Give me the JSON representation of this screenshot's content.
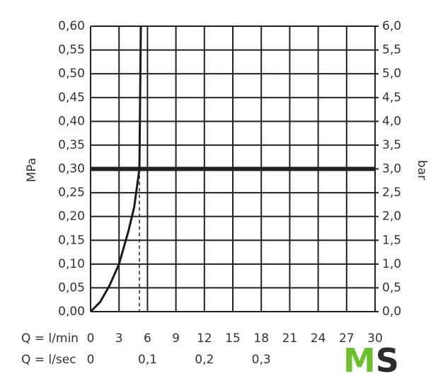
{
  "chart_data": {
    "type": "line",
    "y_label": "MPa",
    "y2_label": "bar",
    "x_label": "Q = l/min",
    "x2_label": "Q = l/sec",
    "x": [
      0,
      1,
      2,
      3,
      4,
      4.6,
      5.15,
      5.3
    ],
    "series": [
      {
        "color": "#1a1a1a",
        "values": [
          0,
          0.02,
          0.055,
          0.1,
          0.17,
          0.22,
          0.3,
          0.6
        ]
      }
    ],
    "xlim": [
      0,
      30
    ],
    "xticks": [
      0,
      3,
      6,
      9,
      12,
      15,
      18,
      21,
      24,
      27,
      30
    ],
    "x2lim": [
      0,
      0.5
    ],
    "x2ticks": [
      0,
      {
        "value": 0.1,
        "label": "0,1"
      },
      {
        "value": 0.2,
        "label": "0,2"
      },
      {
        "value": 0.3,
        "label": "0,3"
      }
    ],
    "ylim": [
      0,
      0.6
    ],
    "yticks": [
      {
        "value": 0,
        "label": "0,00"
      },
      {
        "value": 0.05,
        "label": "0,05"
      },
      {
        "value": 0.1,
        "label": "0,10"
      },
      {
        "value": 0.15,
        "label": "0,15"
      },
      {
        "value": 0.2,
        "label": "0,20"
      },
      {
        "value": 0.25,
        "label": "0,25"
      },
      {
        "value": 0.3,
        "label": "0,30"
      },
      {
        "value": 0.35,
        "label": "0,35"
      },
      {
        "value": 0.4,
        "label": "0,40"
      },
      {
        "value": 0.45,
        "label": "0,45"
      },
      {
        "value": 0.5,
        "label": "0,50"
      },
      {
        "value": 0.55,
        "label": "0,55"
      },
      {
        "value": 0.6,
        "label": "0,60"
      }
    ],
    "y2lim": [
      0,
      6
    ],
    "y2ticks": [
      {
        "value": 0,
        "label": "0,0"
      },
      {
        "value": 0.5,
        "label": "0,5"
      },
      {
        "value": 1,
        "label": "1,0"
      },
      {
        "value": 1.5,
        "label": "1,5"
      },
      {
        "value": 2,
        "label": "2,0"
      },
      {
        "value": 2.5,
        "label": "2,5"
      },
      {
        "value": 3,
        "label": "3,0"
      },
      {
        "value": 3.5,
        "label": "3,5"
      },
      {
        "value": 4,
        "label": "4,0"
      },
      {
        "value": 4.5,
        "label": "4,5"
      },
      {
        "value": 5,
        "label": "5,0"
      },
      {
        "value": 5.5,
        "label": "5,5"
      },
      {
        "value": 6,
        "label": "6,0"
      }
    ],
    "reference_y": 0.3,
    "reference_x": 5.15,
    "grid": true,
    "logo": {
      "parts": [
        "M",
        "S"
      ],
      "colors": [
        "#6cc02c",
        "#2b2b2b"
      ]
    }
  }
}
